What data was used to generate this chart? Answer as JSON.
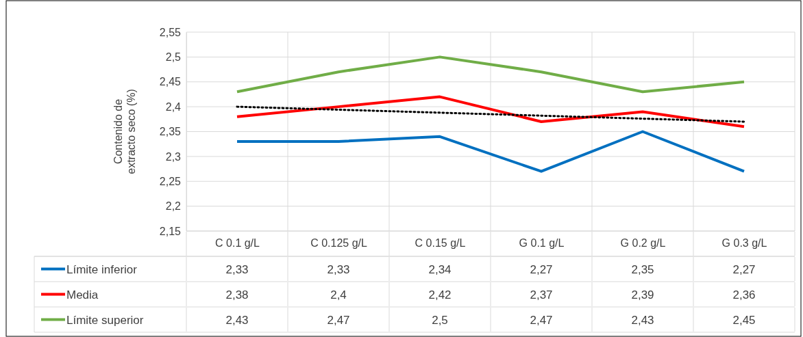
{
  "chart_data": {
    "type": "line",
    "ylabel": "Contenido de extracto seco (%)",
    "categories": [
      "C 0.1 g/L",
      "C 0.125 g/L",
      "C 0.15 g/L",
      "G 0.1 g/L",
      "G 0.2 g/L",
      "G 0.3 g/L"
    ],
    "ylim": [
      2.15,
      2.55
    ],
    "yticks": [
      {
        "value": 2.15,
        "label": "2,15"
      },
      {
        "value": 2.2,
        "label": "2,2"
      },
      {
        "value": 2.25,
        "label": "2,25"
      },
      {
        "value": 2.3,
        "label": "2,3"
      },
      {
        "value": 2.35,
        "label": "2,35"
      },
      {
        "value": 2.4,
        "label": "2,4"
      },
      {
        "value": 2.45,
        "label": "2,45"
      },
      {
        "value": 2.5,
        "label": "2,5"
      },
      {
        "value": 2.55,
        "label": "2,55"
      }
    ],
    "grid": true,
    "legend": "bottom",
    "marker": "none",
    "series": [
      {
        "name": "Límite inferior",
        "color": "#0070c0",
        "values": [
          2.33,
          2.33,
          2.34,
          2.27,
          2.35,
          2.27
        ],
        "value_labels": [
          "2,33",
          "2,33",
          "2,34",
          "2,27",
          "2,35",
          "2,27"
        ]
      },
      {
        "name": "Media",
        "color": "#ff0000",
        "values": [
          2.38,
          2.4,
          2.42,
          2.37,
          2.39,
          2.36
        ],
        "value_labels": [
          "2,38",
          "2,4",
          "2,42",
          "2,37",
          "2,39",
          "2,36"
        ]
      },
      {
        "name": "Límite superior",
        "color": "#70ad47",
        "values": [
          2.43,
          2.47,
          2.5,
          2.47,
          2.43,
          2.45
        ],
        "value_labels": [
          "2,43",
          "2,47",
          "2,5",
          "2,47",
          "2,43",
          "2,45"
        ]
      },
      {
        "type": "line",
        "color": "#000000",
        "line_style": "dotted",
        "x": [
          "C 0.1 g/L",
          "G 0.3 g/L"
        ],
        "values": [
          2.4,
          2.37
        ]
      }
    ]
  }
}
